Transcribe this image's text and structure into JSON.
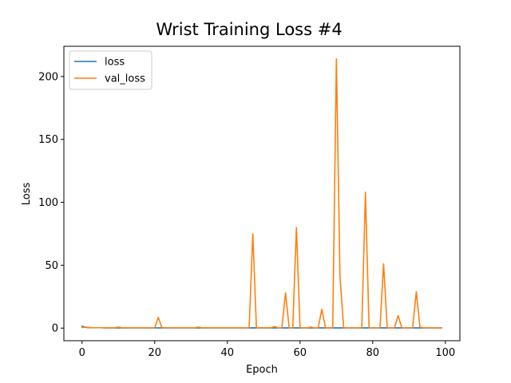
{
  "chart_data": {
    "type": "line",
    "title": "Wrist Training Loss #4",
    "xlabel": "Epoch",
    "ylabel": "Loss",
    "xlim": [
      -5,
      104
    ],
    "ylim": [
      -10,
      224
    ],
    "xticks": [
      0,
      20,
      40,
      60,
      80,
      100
    ],
    "yticks": [
      0,
      50,
      100,
      150,
      200
    ],
    "grid": false,
    "legend_position": "top-left",
    "series": [
      {
        "name": "loss",
        "color": "#1f77b4",
        "x": [
          0,
          1,
          2,
          3,
          4,
          5,
          6,
          7,
          8,
          9,
          10,
          11,
          12,
          13,
          14,
          15,
          16,
          17,
          18,
          19,
          20,
          21,
          22,
          23,
          24,
          25,
          26,
          27,
          28,
          29,
          30,
          31,
          32,
          33,
          34,
          35,
          36,
          37,
          38,
          39,
          40,
          41,
          42,
          43,
          44,
          45,
          46,
          47,
          48,
          49,
          50,
          51,
          52,
          53,
          54,
          55,
          56,
          57,
          58,
          59,
          60,
          61,
          62,
          63,
          64,
          65,
          66,
          67,
          68,
          69,
          70,
          71,
          72,
          73,
          74,
          75,
          76,
          77,
          78,
          79,
          80,
          81,
          82,
          83,
          84,
          85,
          86,
          87,
          88,
          89,
          90,
          91,
          92,
          93,
          94,
          95,
          96,
          97,
          98,
          99
        ],
        "values": [
          1.5,
          0.6,
          0.4,
          0.3,
          0.3,
          0.3,
          0.2,
          0.2,
          0.2,
          0.2,
          0.2,
          0.2,
          0.2,
          0.2,
          0.2,
          0.2,
          0.2,
          0.2,
          0.2,
          0.2,
          0.2,
          0.2,
          0.2,
          0.2,
          0.2,
          0.2,
          0.2,
          0.2,
          0.2,
          0.2,
          0.2,
          0.2,
          0.2,
          0.2,
          0.2,
          0.2,
          0.2,
          0.2,
          0.2,
          0.2,
          0.2,
          0.2,
          0.2,
          0.2,
          0.2,
          0.2,
          0.2,
          0.2,
          0.2,
          0.2,
          0.2,
          0.2,
          0.2,
          0.2,
          0.2,
          0.2,
          0.2,
          0.2,
          0.2,
          0.2,
          0.2,
          0.2,
          0.2,
          0.2,
          0.2,
          0.2,
          0.2,
          0.2,
          0.2,
          0.2,
          0.2,
          0.2,
          0.2,
          0.2,
          0.2,
          0.2,
          0.2,
          0.2,
          0.2,
          0.2,
          0.2,
          0.2,
          0.2,
          0.2,
          0.2,
          0.2,
          0.2,
          0.2,
          0.2,
          0.2,
          0.2,
          0.2,
          0.2,
          0.2,
          0.2,
          0.2,
          0.2,
          0.2,
          0.2,
          0.2
        ]
      },
      {
        "name": "val_loss",
        "color": "#ff7f0e",
        "x": [
          0,
          1,
          2,
          3,
          4,
          5,
          6,
          7,
          8,
          9,
          10,
          11,
          12,
          13,
          14,
          15,
          16,
          17,
          18,
          19,
          20,
          21,
          22,
          23,
          24,
          25,
          26,
          27,
          28,
          29,
          30,
          31,
          32,
          33,
          34,
          35,
          36,
          37,
          38,
          39,
          40,
          41,
          42,
          43,
          44,
          45,
          46,
          47,
          48,
          49,
          50,
          51,
          52,
          53,
          54,
          55,
          56,
          57,
          58,
          59,
          60,
          61,
          62,
          63,
          64,
          65,
          66,
          67,
          68,
          69,
          70,
          71,
          72,
          73,
          74,
          75,
          76,
          77,
          78,
          79,
          80,
          81,
          82,
          83,
          84,
          85,
          86,
          87,
          88,
          89,
          90,
          91,
          92,
          93,
          94,
          95,
          96,
          97,
          98,
          99
        ],
        "values": [
          0.5,
          0.8,
          0.4,
          0.3,
          0.3,
          0.3,
          0.3,
          0.3,
          0.3,
          0.3,
          0.8,
          0.3,
          0.3,
          0.3,
          0.3,
          0.3,
          0.3,
          0.3,
          0.3,
          0.3,
          0.3,
          8.5,
          0.3,
          0.3,
          0.3,
          0.3,
          0.3,
          0.3,
          0.3,
          0.3,
          0.3,
          0.3,
          0.8,
          0.3,
          0.3,
          0.3,
          0.3,
          0.3,
          0.3,
          0.3,
          0.3,
          0.3,
          0.3,
          0.3,
          0.3,
          0.3,
          0.3,
          75,
          0.3,
          0.3,
          0.3,
          0.3,
          0.3,
          1.2,
          0.3,
          0.3,
          28,
          0.3,
          0.3,
          80,
          0.3,
          0.3,
          0.3,
          0.8,
          0.3,
          0.3,
          15,
          0.3,
          0.3,
          0.3,
          214,
          41,
          0.3,
          0.3,
          0.3,
          0.3,
          0.3,
          0.3,
          108,
          0.3,
          0.3,
          0.3,
          0.3,
          51,
          0.3,
          0.3,
          0.3,
          10,
          0.3,
          0.3,
          0.3,
          0.3,
          29,
          0.8,
          0.3,
          0.3,
          0.3,
          0.3,
          0.3,
          0.3
        ]
      }
    ]
  }
}
